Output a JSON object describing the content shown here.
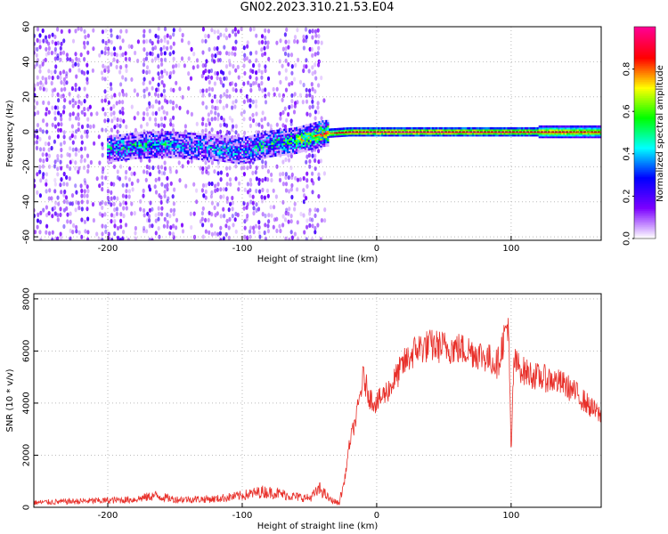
{
  "title": "GN02.2023.310.21.53.E04",
  "chart_data": [
    {
      "type": "heatmap",
      "xlabel": "Height of straight line (km)",
      "ylabel": "Frequency (Hz)",
      "xlim": [
        -255,
        167
      ],
      "ylim": [
        -62,
        60
      ],
      "x_ticks": [
        -200,
        -100,
        0,
        100
      ],
      "y_ticks": [
        -60,
        -40,
        -20,
        0,
        20,
        40,
        60
      ],
      "grid": true,
      "colorbar": {
        "label": "Normalized spectral amplitude",
        "range": [
          0.0,
          1.0
        ],
        "ticks": [
          0.0,
          0.2,
          0.4,
          0.6,
          0.8
        ],
        "colors": [
          "#ffffff",
          "#7b00ff",
          "#0000ff",
          "#00ffff",
          "#00ff00",
          "#ffff00",
          "#ff0000",
          "#ff0090"
        ]
      },
      "ridge": {
        "name": "",
        "x": [
          -200,
          -180,
          -160,
          -140,
          -120,
          -100,
          -80,
          -60,
          -40,
          -20,
          0,
          50,
          100,
          150,
          167
        ],
        "y": [
          -10,
          -8,
          -7,
          -8,
          -9,
          -11,
          -7,
          -5,
          -1,
          0,
          0,
          0,
          0,
          0,
          0
        ],
        "peak_amplitude": [
          0.35,
          0.4,
          0.35,
          0.25,
          0.3,
          0.3,
          0.4,
          0.55,
          0.7,
          0.9,
          0.95,
          0.95,
          0.9,
          0.85,
          0.8
        ]
      }
    },
    {
      "type": "line",
      "xlabel": "Height of straight line (km)",
      "ylabel": "SNR (10 * v/v)",
      "xlim": [
        -255,
        167
      ],
      "ylim": [
        0,
        8200
      ],
      "x_ticks": [
        -200,
        -100,
        0,
        100
      ],
      "y_ticks": [
        0,
        2000,
        4000,
        6000,
        8000
      ],
      "grid": true,
      "color": "#e8302a",
      "series": [
        {
          "name": "",
          "x": [
            -255,
            -230,
            -200,
            -180,
            -165,
            -150,
            -120,
            -100,
            -85,
            -75,
            -60,
            -50,
            -42,
            -35,
            -28,
            -24,
            -20,
            -15,
            -10,
            -5,
            0,
            10,
            20,
            30,
            40,
            50,
            60,
            70,
            80,
            90,
            98,
            100,
            102,
            110,
            120,
            130,
            140,
            150,
            160,
            167
          ],
          "y": [
            180,
            220,
            260,
            300,
            450,
            300,
            320,
            450,
            600,
            550,
            400,
            350,
            700,
            300,
            150,
            1000,
            2500,
            3500,
            5000,
            4200,
            4000,
            4600,
            5500,
            6100,
            6200,
            6150,
            6100,
            6000,
            5800,
            5500,
            7200,
            1900,
            5600,
            5200,
            5000,
            4900,
            4700,
            4300,
            3800,
            3500
          ]
        }
      ]
    }
  ]
}
